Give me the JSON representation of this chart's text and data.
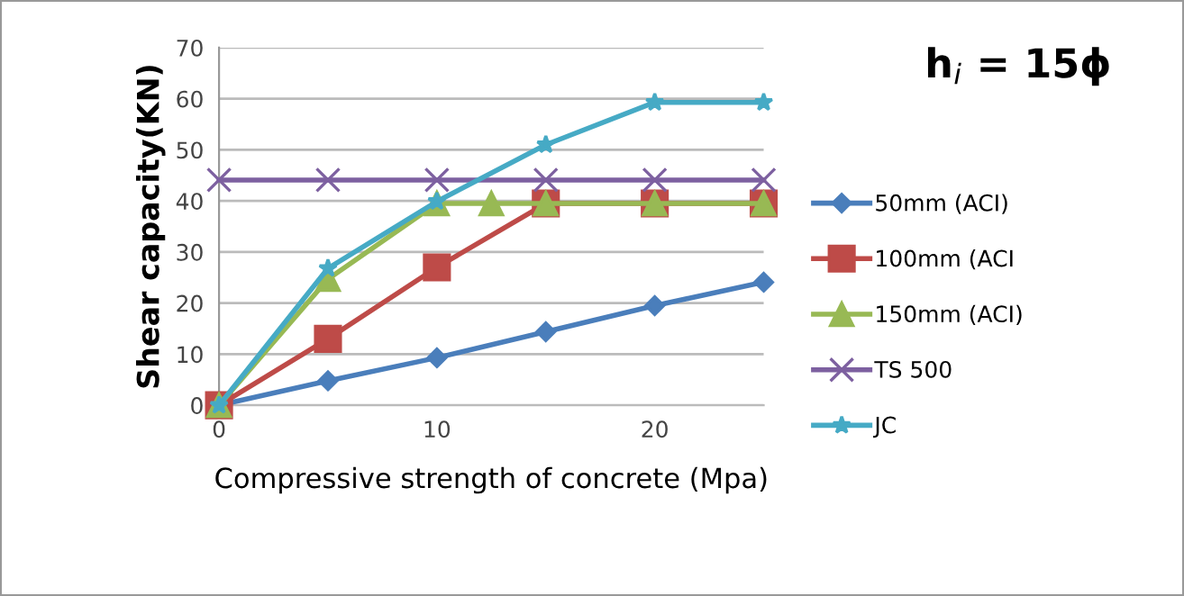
{
  "chart_data": {
    "type": "line",
    "title": "h$_{i}$ = 15ϕ",
    "xlabel": "Compressive strength of concrete (Mpa)",
    "ylabel": "Shear capacity(KN)",
    "xlim": [
      0,
      25
    ],
    "xticks": [
      0,
      10,
      20
    ],
    "ylim": [
      0,
      70
    ],
    "yticks": [
      0,
      10,
      20,
      30,
      40,
      50,
      60,
      70
    ],
    "grid": "y",
    "legend": "right",
    "series": [
      {
        "name": "50mm (ACI)",
        "color": "#4a7ebb",
        "marker": "diamond",
        "x": [
          0,
          5,
          10,
          15,
          20,
          25
        ],
        "values": [
          0,
          4.8,
          9.3,
          14.4,
          19.5,
          24.1
        ]
      },
      {
        "name": "100mm (ACI",
        "color": "#be4b48",
        "marker": "square",
        "x": [
          0,
          5,
          10,
          15,
          20,
          25
        ],
        "values": [
          0,
          13,
          27,
          39.5,
          39.5,
          39.5
        ]
      },
      {
        "name": "150mm (ACI)",
        "color": "#98b954",
        "marker": "triangle",
        "x": [
          0,
          5,
          10,
          12.5,
          15,
          20,
          25
        ],
        "values": [
          0,
          24.7,
          39.5,
          39.5,
          39.5,
          39.5,
          39.5
        ]
      },
      {
        "name": "TS 500",
        "color": "#7d60a0",
        "marker": "cross",
        "x": [
          0,
          5,
          10,
          15,
          20,
          25
        ],
        "values": [
          44.1,
          44.1,
          44.1,
          44.1,
          44.1,
          44.1
        ]
      },
      {
        "name": "JC",
        "color": "#46aac5",
        "marker": "star",
        "x": [
          0,
          5,
          10,
          15,
          20,
          25
        ],
        "values": [
          0,
          26.8,
          39.9,
          51,
          59.3,
          59.3
        ]
      }
    ]
  }
}
